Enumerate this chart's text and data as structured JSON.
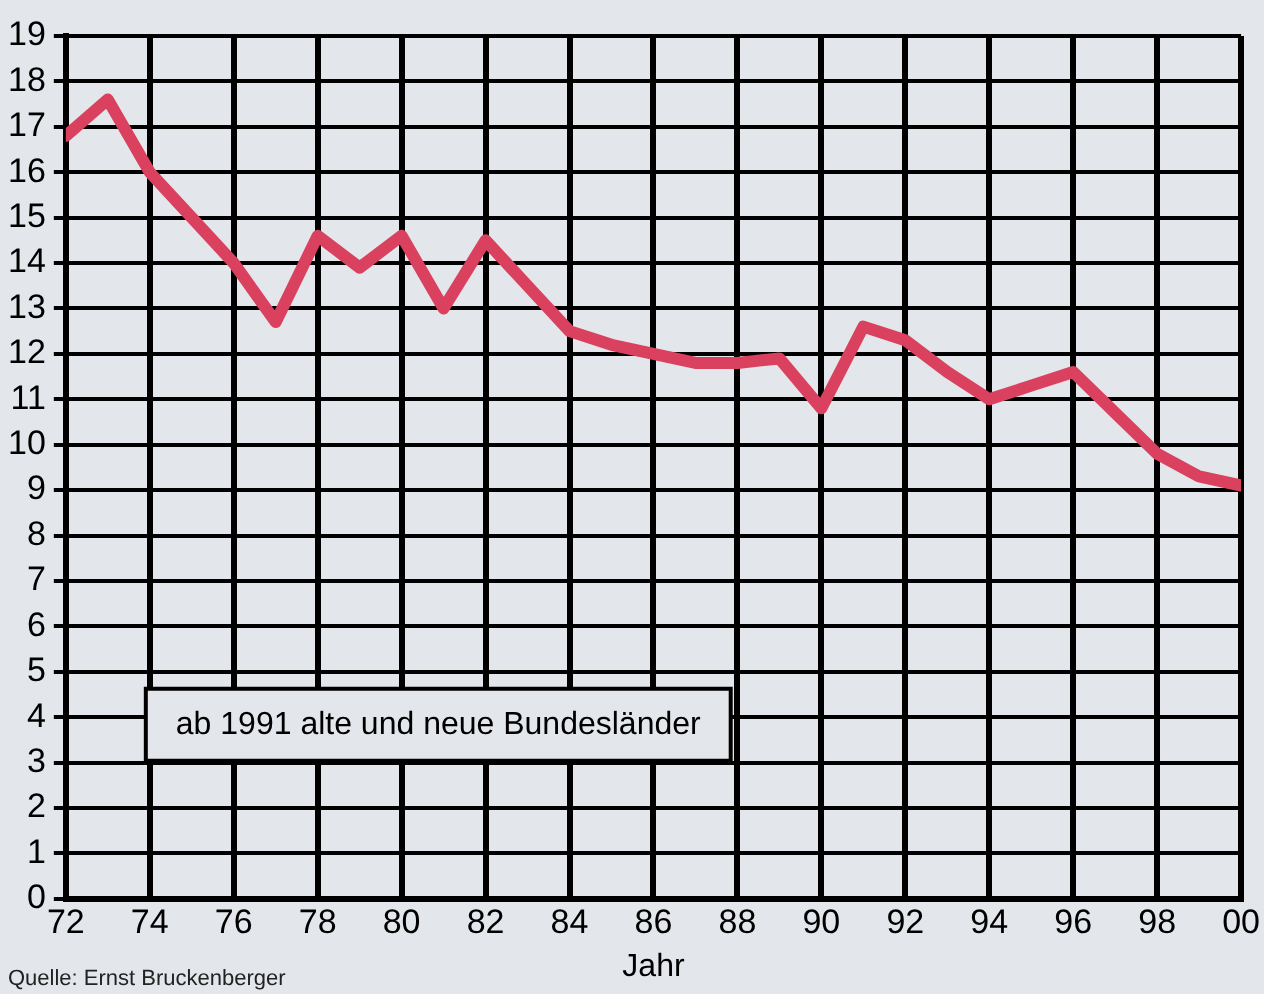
{
  "chart_data": {
    "type": "line",
    "xlabel": "Jahr",
    "annotations": [
      "ab 1991 alte und neue Bundesländer",
      "Quelle: Ernst Bruckenberger"
    ],
    "x": [
      1972,
      1973,
      1974,
      1975,
      1976,
      1977,
      1978,
      1979,
      1980,
      1981,
      1982,
      1983,
      1984,
      1985,
      1986,
      1987,
      1988,
      1989,
      1990,
      1991,
      1992,
      1993,
      1994,
      1995,
      1996,
      1997,
      1998,
      1999,
      2000
    ],
    "series": [
      {
        "color": "#d9415f",
        "values": [
          16.8,
          17.6,
          16.0,
          15.0,
          14.0,
          12.7,
          14.6,
          13.9,
          14.6,
          13.0,
          14.5,
          13.5,
          12.5,
          12.2,
          12.0,
          11.8,
          11.8,
          11.9,
          10.8,
          12.6,
          12.3,
          11.6,
          11.0,
          11.3,
          11.6,
          10.7,
          9.8,
          9.3,
          9.1
        ]
      }
    ],
    "xlim": [
      1972,
      2000
    ],
    "xticks": [
      {
        "value": 1972,
        "label": "72"
      },
      {
        "value": 1974,
        "label": "74"
      },
      {
        "value": 1976,
        "label": "76"
      },
      {
        "value": 1978,
        "label": "78"
      },
      {
        "value": 1980,
        "label": "80"
      },
      {
        "value": 1982,
        "label": "82"
      },
      {
        "value": 1984,
        "label": "84"
      },
      {
        "value": 1986,
        "label": "86"
      },
      {
        "value": 1988,
        "label": "88"
      },
      {
        "value": 1990,
        "label": "90"
      },
      {
        "value": 1992,
        "label": "92"
      },
      {
        "value": 1994,
        "label": "94"
      },
      {
        "value": 1996,
        "label": "96"
      },
      {
        "value": 1998,
        "label": "98"
      },
      {
        "value": 2000,
        "label": "00"
      }
    ],
    "ylim": [
      0,
      19
    ],
    "yticks": [
      0,
      1,
      2,
      3,
      4,
      5,
      6,
      7,
      8,
      9,
      10,
      11,
      12,
      13,
      14,
      15,
      16,
      17,
      18,
      19
    ],
    "grid": true,
    "legend": false,
    "marker": "none",
    "line_style": "solid"
  }
}
